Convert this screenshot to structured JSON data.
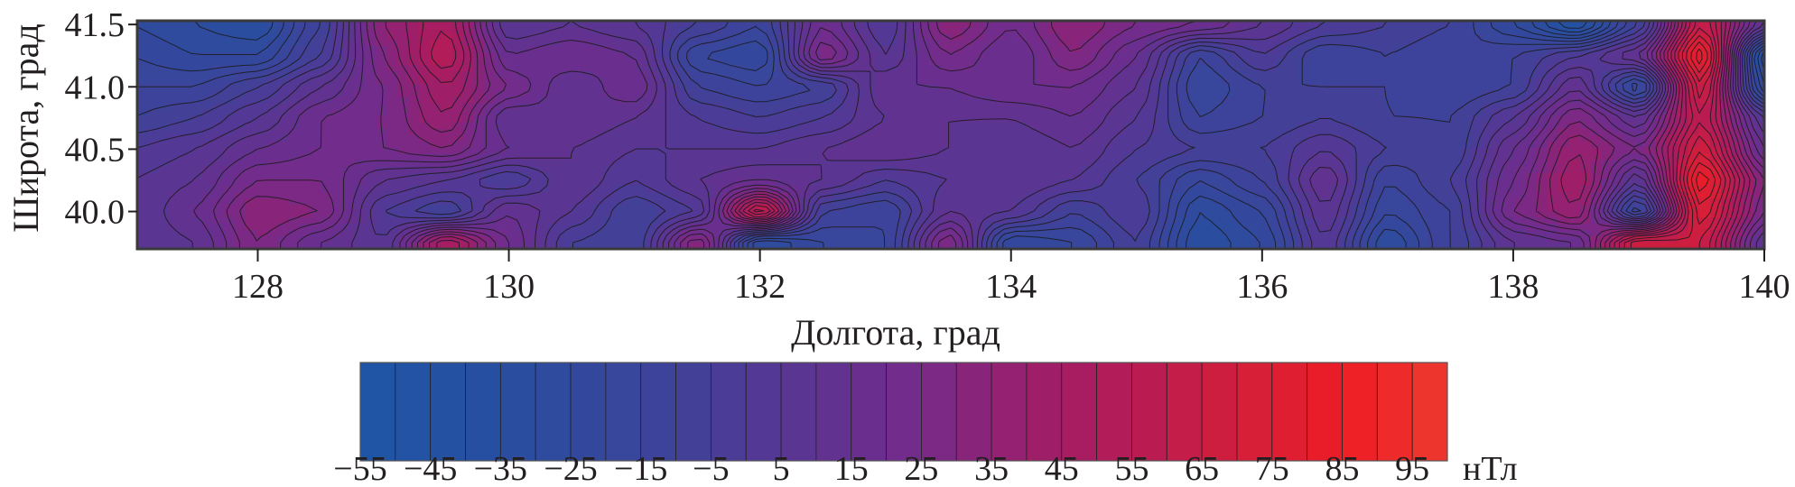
{
  "chart_data": {
    "type": "heatmap",
    "style": "filled contour map",
    "xlabel": "Долгота, град",
    "ylabel": "Широта, град",
    "xlim": [
      127.04,
      140
    ],
    "ylim": [
      39.7,
      41.53
    ],
    "x_ticks": [
      "128",
      "130",
      "132",
      "134",
      "136",
      "138",
      "140"
    ],
    "y_ticks": [
      "40.0",
      "40.5",
      "41.0",
      "41.5"
    ],
    "grid": false,
    "contour_interval": 5,
    "grid_lon": [
      127,
      127.5,
      128,
      128.5,
      129,
      129.5,
      130,
      130.5,
      131,
      131.5,
      132,
      132.5,
      133,
      133.5,
      134,
      134.5,
      135,
      135.5,
      136,
      136.5,
      137,
      137.5,
      138,
      138.5,
      139,
      139.5,
      140
    ],
    "grid_lat": [
      41.5,
      41.25,
      41.0,
      40.75,
      40.5,
      40.25,
      40.0,
      39.75
    ],
    "values_by_lon": [
      [
        -25,
        -20,
        -15,
        -10,
        0,
        5,
        5,
        5
      ],
      [
        -30,
        -25,
        -15,
        -5,
        5,
        10,
        15,
        10
      ],
      [
        -35,
        -25,
        -5,
        5,
        15,
        25,
        35,
        30
      ],
      [
        -10,
        -5,
        10,
        20,
        20,
        25,
        30,
        15
      ],
      [
        35,
        30,
        25,
        25,
        25,
        10,
        0,
        5
      ],
      [
        50,
        55,
        45,
        40,
        30,
        5,
        -10,
        50
      ],
      [
        5,
        15,
        25,
        10,
        15,
        -5,
        15,
        20
      ],
      [
        10,
        20,
        10,
        15,
        10,
        10,
        5,
        -5
      ],
      [
        5,
        15,
        20,
        10,
        5,
        0,
        -10,
        -10
      ],
      [
        -5,
        -20,
        -10,
        0,
        5,
        10,
        0,
        35
      ],
      [
        -15,
        -25,
        -15,
        -5,
        5,
        15,
        65,
        -30
      ],
      [
        20,
        30,
        -10,
        0,
        10,
        10,
        -10,
        -20
      ],
      [
        0,
        5,
        15,
        10,
        15,
        0,
        -15,
        -15
      ],
      [
        35,
        25,
        15,
        10,
        10,
        5,
        10,
        30
      ],
      [
        20,
        15,
        20,
        10,
        5,
        10,
        5,
        -25
      ],
      [
        35,
        30,
        20,
        15,
        10,
        5,
        -10,
        -20
      ],
      [
        25,
        15,
        10,
        5,
        0,
        -5,
        0,
        -5
      ],
      [
        20,
        -15,
        -20,
        -15,
        -5,
        -20,
        -30,
        -35
      ],
      [
        10,
        0,
        -10,
        -10,
        -5,
        -10,
        -20,
        -25
      ],
      [
        0,
        -15,
        -10,
        -5,
        5,
        15,
        10,
        5
      ],
      [
        -5,
        -10,
        -10,
        -10,
        -5,
        -15,
        -20,
        -30
      ],
      [
        -10,
        -15,
        -15,
        -10,
        -10,
        -5,
        -10,
        -10
      ],
      [
        -25,
        -10,
        -10,
        5,
        15,
        20,
        25,
        10
      ],
      [
        -45,
        0,
        15,
        30,
        40,
        45,
        40,
        15
      ],
      [
        -10,
        15,
        -25,
        10,
        25,
        5,
        -20,
        70
      ],
      [
        65,
        85,
        70,
        60,
        70,
        85,
        75,
        65
      ],
      [
        10,
        -40,
        -30,
        5,
        15,
        30,
        25,
        10
      ]
    ],
    "colorbar": {
      "min": -55,
      "max": 100,
      "step": 5,
      "tick_labels": [
        "−55",
        "−45",
        "−35",
        "−25",
        "−15",
        "−5",
        "5",
        "15",
        "25",
        "35",
        "45",
        "55",
        "65",
        "75",
        "85",
        "95"
      ],
      "tick_values": [
        -55,
        -45,
        -35,
        -25,
        -15,
        -5,
        5,
        15,
        25,
        35,
        45,
        55,
        65,
        75,
        85,
        95
      ],
      "unit": "нТл",
      "palette": [
        {
          "value": -55,
          "color": "#1f56a7"
        },
        {
          "value": -30,
          "color": "#2b4c9f"
        },
        {
          "value": -10,
          "color": "#3f4299"
        },
        {
          "value": 0,
          "color": "#4f3b96"
        },
        {
          "value": 10,
          "color": "#5e3391"
        },
        {
          "value": 25,
          "color": "#762a8a"
        },
        {
          "value": 40,
          "color": "#9a1f6c"
        },
        {
          "value": 55,
          "color": "#b51b55"
        },
        {
          "value": 70,
          "color": "#d21f3c"
        },
        {
          "value": 85,
          "color": "#ee1c25"
        },
        {
          "value": 100,
          "color": "#ee3a2e"
        }
      ]
    }
  }
}
